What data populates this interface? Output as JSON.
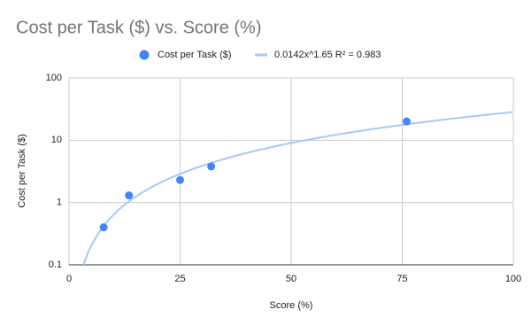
{
  "chart_data": {
    "type": "scatter",
    "title": "Cost per Task ($) vs. Score (%)",
    "x_label": "Score (%)",
    "y_label": "Cost per Task ($)",
    "series": [
      {
        "name": "Cost per Task ($)",
        "color": "#4285f4",
        "x": [
          7.8,
          13.5,
          25,
          32,
          76
        ],
        "values": [
          0.4,
          1.3,
          2.3,
          3.8,
          20
        ]
      }
    ],
    "trendline": {
      "name": "0.0142x^1.65 R² = 0.983",
      "type": "power",
      "coefficient": 0.0142,
      "exponent": 1.65,
      "color": "#a8c7fa"
    },
    "xlim": [
      0,
      100
    ],
    "xticks": [
      0,
      25,
      50,
      75,
      100
    ],
    "ylim": [
      0.1,
      100
    ],
    "yticks": [
      0.1,
      1,
      10,
      100
    ],
    "y_log": true,
    "grid": true,
    "legend": "top"
  }
}
